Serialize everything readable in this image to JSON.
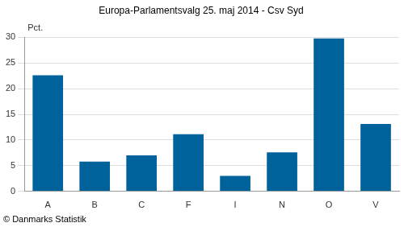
{
  "chart_data": {
    "type": "bar",
    "title": "Europa-Parlamentsvalg 25. maj 2014 - Csv Syd",
    "ylabel": "Pct.",
    "source": "© Danmarks Statistik",
    "categories": [
      "A",
      "B",
      "C",
      "F",
      "I",
      "N",
      "O",
      "V"
    ],
    "values": [
      22.6,
      5.8,
      7.0,
      11.1,
      3.0,
      7.6,
      29.8,
      13.1
    ],
    "color": "#00629b",
    "ylim": [
      0,
      30
    ],
    "yticks": [
      0,
      5,
      10,
      15,
      20,
      25,
      30
    ],
    "grid": true
  }
}
